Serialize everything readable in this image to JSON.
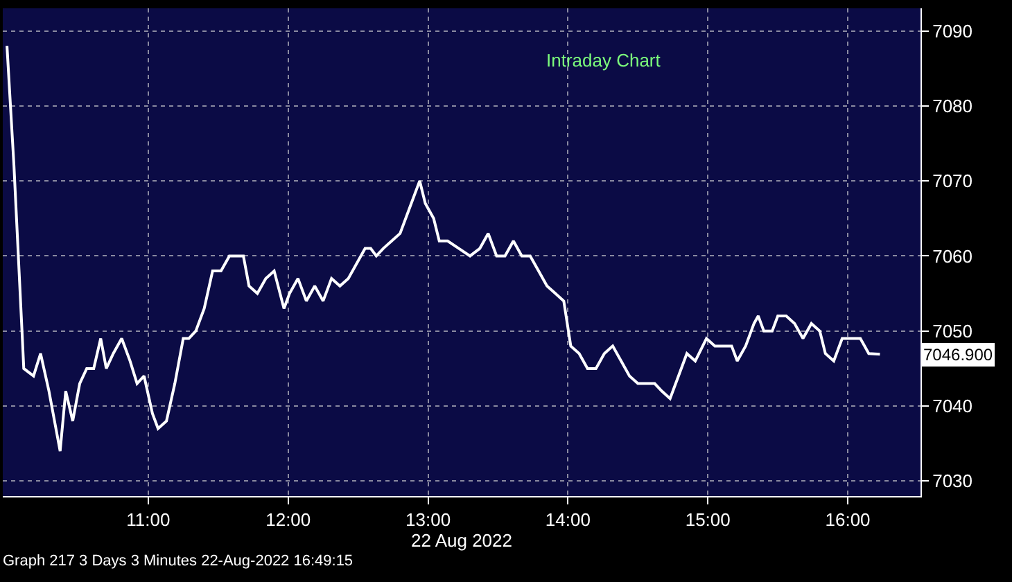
{
  "chart_data": {
    "type": "line",
    "title": "Intraday Chart",
    "xlabel": "22 Aug 2022",
    "x": [
      9.99,
      10.04,
      10.1,
      10.11,
      10.18,
      10.23,
      10.29,
      10.37,
      10.41,
      10.46,
      10.51,
      10.56,
      10.61,
      10.66,
      10.7,
      10.75,
      10.81,
      10.87,
      10.92,
      10.97,
      11.03,
      11.07,
      11.13,
      11.19,
      11.25,
      11.29,
      11.34,
      11.4,
      11.46,
      11.52,
      11.58,
      11.64,
      11.68,
      11.72,
      11.78,
      11.84,
      11.9,
      11.97,
      12.01,
      12.07,
      12.13,
      12.19,
      12.25,
      12.31,
      12.37,
      12.43,
      12.49,
      12.55,
      12.59,
      12.63,
      12.68,
      12.74,
      12.8,
      12.86,
      12.94,
      12.98,
      13.04,
      13.08,
      13.14,
      13.22,
      13.3,
      13.37,
      13.43,
      13.49,
      13.55,
      13.61,
      13.67,
      13.73,
      13.79,
      13.85,
      13.91,
      13.97,
      14.02,
      14.08,
      14.14,
      14.2,
      14.26,
      14.32,
      14.38,
      14.44,
      14.5,
      14.56,
      14.62,
      14.67,
      14.73,
      14.79,
      14.85,
      14.91,
      14.99,
      15.05,
      15.11,
      15.17,
      15.21,
      15.27,
      15.33,
      15.36,
      15.4,
      15.46,
      15.5,
      15.56,
      15.62,
      15.68,
      15.74,
      15.8,
      15.84,
      15.9,
      15.96,
      16.01,
      16.09,
      16.15,
      16.23
    ],
    "series": [
      {
        "color": "#ffffff",
        "values": [
          7088,
          7072,
          7049,
          7045,
          7044,
          7047,
          7042,
          7034,
          7042,
          7038,
          7043,
          7045,
          7045,
          7049,
          7045,
          7047,
          7049,
          7046,
          7043,
          7044,
          7039,
          7037,
          7038,
          7043,
          7049,
          7049,
          7050,
          7053,
          7058,
          7058,
          7060,
          7060,
          7060,
          7056,
          7055,
          7057,
          7058,
          7053,
          7055,
          7057,
          7054,
          7056,
          7054,
          7057,
          7056,
          7057,
          7059,
          7061,
          7061,
          7060,
          7061,
          7062,
          7063,
          7066,
          7070,
          7067,
          7065,
          7062,
          7062,
          7061,
          7060,
          7061,
          7063,
          7060,
          7060,
          7062,
          7060,
          7060,
          7058,
          7056,
          7055,
          7054,
          7048,
          7047,
          7045,
          7045,
          7047,
          7048,
          7046,
          7044,
          7043,
          7043,
          7043,
          7042,
          7041,
          7044,
          7047,
          7046,
          7049,
          7048,
          7048,
          7048,
          7046,
          7048,
          7051,
          7052,
          7050,
          7050,
          7052,
          7052,
          7051,
          7049,
          7051,
          7050,
          7047,
          7046,
          7049,
          7049,
          7049,
          7047,
          7046.9
        ]
      }
    ],
    "xlim": [
      9.96,
      16.52
    ],
    "xticks": [
      {
        "value": 11,
        "label": "11:00"
      },
      {
        "value": 12,
        "label": "12:00"
      },
      {
        "value": 13,
        "label": "13:00"
      },
      {
        "value": 14,
        "label": "14:00"
      },
      {
        "value": 15,
        "label": "15:00"
      },
      {
        "value": 16,
        "label": "16:00"
      }
    ],
    "ylim": [
      7028,
      7093
    ],
    "yticks": [
      7030,
      7040,
      7050,
      7060,
      7070,
      7080,
      7090
    ],
    "grid": true,
    "line_style": "solid",
    "marker": "none",
    "legend": false,
    "annotations": [
      {
        "text": "7046.900",
        "x": 16.23,
        "y": 7046.9
      },
      "Graph 217 3 Days 3 Minutes 22-Aug-2022 16:49:15"
    ]
  }
}
